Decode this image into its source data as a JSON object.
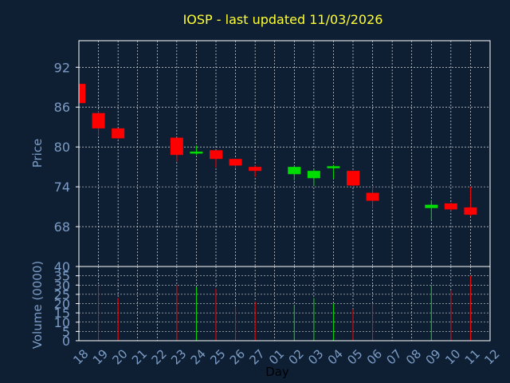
{
  "chart_data": {
    "type": "candlestick",
    "title": "IOSP - last updated 11/03/2026",
    "colors": {
      "background": "#0f1f33",
      "up": "#00dd00",
      "down": "#ff0000",
      "grid": "#ffffff",
      "axis_text": "#7b9cc6",
      "title": "#ffff33",
      "frame": "#ffffff"
    },
    "x_ticks": [
      "18",
      "19",
      "20",
      "21",
      "22",
      "23",
      "24",
      "25",
      "26",
      "27",
      "01",
      "02",
      "03",
      "04",
      "05",
      "06",
      "07",
      "08",
      "09",
      "10",
      "11",
      "12"
    ],
    "x_label": "Day",
    "price": {
      "ylabel": "Price",
      "ylim": [
        62,
        96
      ],
      "ticks": [
        "92",
        "86",
        "80",
        "74",
        "68"
      ],
      "tick_values": [
        92,
        86,
        80,
        74,
        68
      ],
      "candles": [
        {
          "x": "18",
          "open": 89.5,
          "high": 89.5,
          "low": 86.4,
          "close": 86.6
        },
        {
          "x": "19",
          "open": 85.1,
          "high": 85.4,
          "low": 81.7,
          "close": 82.8
        },
        {
          "x": "20",
          "open": 82.8,
          "high": 82.8,
          "low": 81.2,
          "close": 81.3
        },
        {
          "x": "23",
          "open": 81.4,
          "high": 81.4,
          "low": 77.8,
          "close": 78.8
        },
        {
          "x": "24",
          "open": 79.0,
          "high": 80.2,
          "low": 78.8,
          "close": 79.3
        },
        {
          "x": "25",
          "open": 79.5,
          "high": 79.5,
          "low": 76.9,
          "close": 78.2
        },
        {
          "x": "26",
          "open": 78.2,
          "high": 78.2,
          "low": 76.8,
          "close": 77.2
        },
        {
          "x": "27",
          "open": 77.0,
          "high": 77.2,
          "low": 75.5,
          "close": 76.4
        },
        {
          "x": "02",
          "open": 75.9,
          "high": 77.2,
          "low": 75.0,
          "close": 77.0
        },
        {
          "x": "03",
          "open": 75.3,
          "high": 76.7,
          "low": 74.1,
          "close": 76.4
        },
        {
          "x": "04",
          "open": 76.8,
          "high": 77.3,
          "low": 75.2,
          "close": 77.1
        },
        {
          "x": "05",
          "open": 76.4,
          "high": 76.4,
          "low": 74.1,
          "close": 74.2
        },
        {
          "x": "06",
          "open": 73.1,
          "high": 74.0,
          "low": 70.8,
          "close": 71.9
        },
        {
          "x": "09",
          "open": 70.8,
          "high": 72.0,
          "low": 69.0,
          "close": 71.3
        },
        {
          "x": "10",
          "open": 71.5,
          "high": 71.6,
          "low": 70.4,
          "close": 70.6
        },
        {
          "x": "11",
          "open": 70.9,
          "high": 74.0,
          "low": 69.6,
          "close": 69.8
        }
      ]
    },
    "volume": {
      "ylabel": "Volume (0000)",
      "ylim": [
        0,
        40
      ],
      "ticks": [
        "40",
        "35",
        "30",
        "25",
        "20",
        "15",
        "10",
        "5",
        "0"
      ],
      "tick_values": [
        40,
        35,
        30,
        25,
        20,
        15,
        10,
        5,
        0
      ],
      "bars": [
        {
          "x": "19",
          "value": 30,
          "dir": "down"
        },
        {
          "x": "20",
          "value": 23,
          "dir": "down"
        },
        {
          "x": "23",
          "value": 30,
          "dir": "down"
        },
        {
          "x": "24",
          "value": 29,
          "dir": "up"
        },
        {
          "x": "25",
          "value": 28,
          "dir": "down"
        },
        {
          "x": "26",
          "value": 18,
          "dir": "down"
        },
        {
          "x": "27",
          "value": 21,
          "dir": "down"
        },
        {
          "x": "02",
          "value": 19,
          "dir": "up"
        },
        {
          "x": "03",
          "value": 23,
          "dir": "up"
        },
        {
          "x": "04",
          "value": 20,
          "dir": "up"
        },
        {
          "x": "05",
          "value": 17,
          "dir": "down"
        },
        {
          "x": "06",
          "value": 20,
          "dir": "down"
        },
        {
          "x": "09",
          "value": 30,
          "dir": "up"
        },
        {
          "x": "10",
          "value": 27,
          "dir": "down"
        },
        {
          "x": "11",
          "value": 35,
          "dir": "down"
        }
      ]
    }
  }
}
